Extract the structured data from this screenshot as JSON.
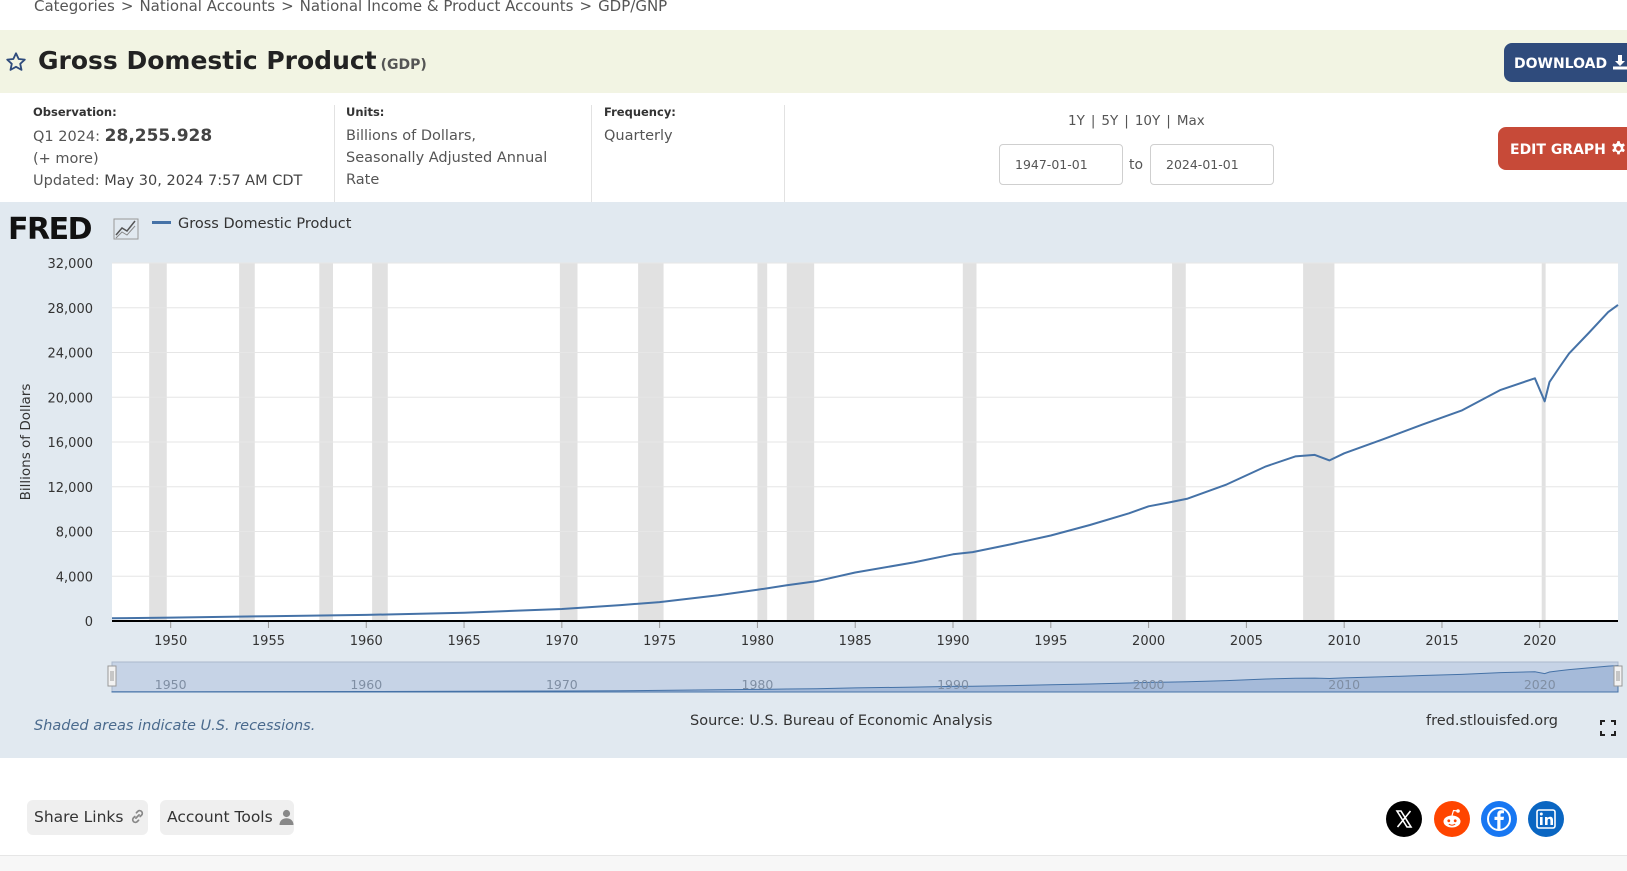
{
  "breadcrumb": {
    "items": [
      "Categories",
      "National Accounts",
      "National Income & Product Accounts",
      "GDP/GNP"
    ],
    "separator": ">"
  },
  "header": {
    "title": "Gross Domestic Product",
    "series_id": "(GDP)",
    "download_label": "DOWNLOAD",
    "star_icon": "star-outline-icon",
    "download_icon": "download-icon"
  },
  "meta": {
    "observation_label": "Observation:",
    "observation_period": "Q1 2024:",
    "observation_value": "28,255.928",
    "more_link": "(+ more)",
    "updated_prefix": "Updated:",
    "updated_value": "May 30, 2024 7:57 AM CDT",
    "units_label": "Units:",
    "units_line1": "Billions of Dollars,",
    "units_line2": "Seasonally Adjusted Annual",
    "units_line3": "Rate",
    "frequency_label": "Frequency:",
    "frequency_value": "Quarterly"
  },
  "range": {
    "links": [
      "1Y",
      "5Y",
      "10Y",
      "Max"
    ],
    "start_date": "1947-01-01",
    "to_label": "to",
    "end_date": "2024-01-01"
  },
  "edit_graph_label": "EDIT GRAPH",
  "graph": {
    "logo_text": "FRED",
    "legend_label": "Gross Domestic Product",
    "recession_note": "Shaded areas indicate U.S. recessions.",
    "source": "Source: U.S. Bureau of Economic Analysis",
    "site": "fred.stlouisfed.org",
    "fullscreen_icon": "fullscreen-icon"
  },
  "chart_data": {
    "type": "line",
    "title": "",
    "ylabel": "Billions of Dollars",
    "xlabel": "",
    "ylim": [
      0,
      32000
    ],
    "xlim": [
      1947.0,
      2024.0
    ],
    "y_ticks": [
      "32,000",
      "28,000",
      "24,000",
      "20,000",
      "16,000",
      "12,000",
      "8,000",
      "4,000",
      "0"
    ],
    "x_ticks": [
      "1950",
      "1955",
      "1960",
      "1965",
      "1970",
      "1975",
      "1980",
      "1985",
      "1990",
      "1995",
      "2000",
      "2005",
      "2010",
      "2015",
      "2020"
    ],
    "navigator_ticks": [
      "1950",
      "1960",
      "1970",
      "1980",
      "1990",
      "2000",
      "2010",
      "2020"
    ],
    "grid": true,
    "legend_position": "top-left",
    "line_color": "#4572a7",
    "recessions": [
      [
        1948.9,
        1949.8
      ],
      [
        1953.5,
        1954.3
      ],
      [
        1957.6,
        1958.3
      ],
      [
        1960.3,
        1961.1
      ],
      [
        1969.9,
        1970.8
      ],
      [
        1973.9,
        1975.2
      ],
      [
        1980.0,
        1980.5
      ],
      [
        1981.5,
        1982.9
      ],
      [
        1990.5,
        1991.2
      ],
      [
        2001.2,
        2001.9
      ],
      [
        2007.9,
        2009.5
      ],
      [
        2020.1,
        2020.3
      ]
    ],
    "series": [
      {
        "name": "Gross Domestic Product",
        "x": [
          1947,
          1950,
          1955,
          1960,
          1965,
          1970,
          1973,
          1975,
          1978,
          1980,
          1981.5,
          1983,
          1985,
          1988,
          1990,
          1991,
          1993,
          1995,
          1997,
          1999,
          2000,
          2001,
          2002,
          2004,
          2006,
          2007.5,
          2008.5,
          2009.25,
          2010,
          2012,
          2014,
          2016,
          2018,
          2019.75,
          2020.25,
          2020.5,
          2021,
          2021.5,
          2022.5,
          2023.5,
          2024
        ],
        "y": [
          243,
          300,
          426,
          543,
          744,
          1073,
          1425,
          1688,
          2294,
          2790,
          3200,
          3550,
          4339,
          5236,
          5963,
          6158,
          6878,
          7640,
          8577,
          9631,
          10251,
          10582,
          10937,
          12213,
          13815,
          14716,
          14843,
          14356,
          14990,
          16254,
          17551,
          18805,
          20656,
          21694,
          19636,
          21363,
          22657,
          23921,
          25744,
          27610,
          28256
        ]
      }
    ]
  }
}
